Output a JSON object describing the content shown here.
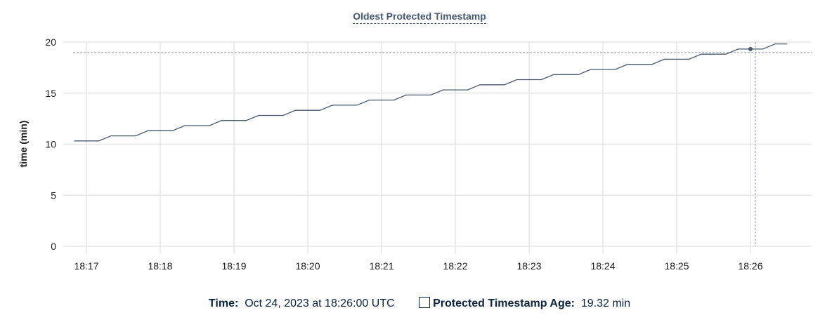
{
  "chart_data": {
    "type": "line",
    "title": "Oldest Protected Timestamp",
    "ylabel": "time (min)",
    "xlabel": "",
    "ylim": [
      0,
      20
    ],
    "yticks": [
      "0",
      "5",
      "10",
      "15",
      "20"
    ],
    "xticks": [
      "18:17",
      "18:18",
      "18:19",
      "18:20",
      "18:21",
      "18:22",
      "18:23",
      "18:24",
      "18:25",
      "18:26"
    ],
    "grid": true,
    "line_color": "#475872",
    "series": [
      {
        "name": "Protected Timestamp Age",
        "points": [
          [
            "18:16:50",
            10.32
          ],
          [
            "18:17:00",
            10.32
          ],
          [
            "18:17:10",
            10.32
          ],
          [
            "18:17:20",
            10.82
          ],
          [
            "18:17:30",
            10.82
          ],
          [
            "18:17:40",
            10.82
          ],
          [
            "18:17:50",
            11.32
          ],
          [
            "18:18:00",
            11.32
          ],
          [
            "18:18:10",
            11.32
          ],
          [
            "18:18:20",
            11.82
          ],
          [
            "18:18:30",
            11.82
          ],
          [
            "18:18:40",
            11.82
          ],
          [
            "18:18:50",
            12.32
          ],
          [
            "18:19:00",
            12.32
          ],
          [
            "18:19:10",
            12.32
          ],
          [
            "18:19:20",
            12.82
          ],
          [
            "18:19:30",
            12.82
          ],
          [
            "18:19:40",
            12.82
          ],
          [
            "18:19:50",
            13.32
          ],
          [
            "18:20:00",
            13.32
          ],
          [
            "18:20:10",
            13.32
          ],
          [
            "18:20:20",
            13.82
          ],
          [
            "18:20:30",
            13.82
          ],
          [
            "18:20:40",
            13.82
          ],
          [
            "18:20:50",
            14.32
          ],
          [
            "18:21:00",
            14.32
          ],
          [
            "18:21:10",
            14.32
          ],
          [
            "18:21:20",
            14.82
          ],
          [
            "18:21:30",
            14.82
          ],
          [
            "18:21:40",
            14.82
          ],
          [
            "18:21:50",
            15.32
          ],
          [
            "18:22:00",
            15.32
          ],
          [
            "18:22:10",
            15.32
          ],
          [
            "18:22:20",
            15.82
          ],
          [
            "18:22:30",
            15.82
          ],
          [
            "18:22:40",
            15.82
          ],
          [
            "18:22:50",
            16.32
          ],
          [
            "18:23:00",
            16.32
          ],
          [
            "18:23:10",
            16.32
          ],
          [
            "18:23:20",
            16.82
          ],
          [
            "18:23:30",
            16.82
          ],
          [
            "18:23:40",
            16.82
          ],
          [
            "18:23:50",
            17.32
          ],
          [
            "18:24:00",
            17.32
          ],
          [
            "18:24:10",
            17.32
          ],
          [
            "18:24:20",
            17.82
          ],
          [
            "18:24:30",
            17.82
          ],
          [
            "18:24:40",
            17.82
          ],
          [
            "18:24:50",
            18.32
          ],
          [
            "18:25:00",
            18.32
          ],
          [
            "18:25:10",
            18.32
          ],
          [
            "18:25:20",
            18.82
          ],
          [
            "18:25:30",
            18.82
          ],
          [
            "18:25:40",
            18.82
          ],
          [
            "18:25:50",
            19.32
          ],
          [
            "18:26:00",
            19.32
          ],
          [
            "18:26:10",
            19.32
          ],
          [
            "18:26:20",
            19.82
          ],
          [
            "18:26:30",
            19.82
          ]
        ]
      }
    ],
    "hover": {
      "time": "18:26:00",
      "value": 19.32
    }
  },
  "legend": {
    "time_label": "Time:",
    "time_value": "Oct 24, 2023 at 18:26:00 UTC",
    "series_label": "Protected Timestamp Age:",
    "series_value": "19.32 min"
  }
}
